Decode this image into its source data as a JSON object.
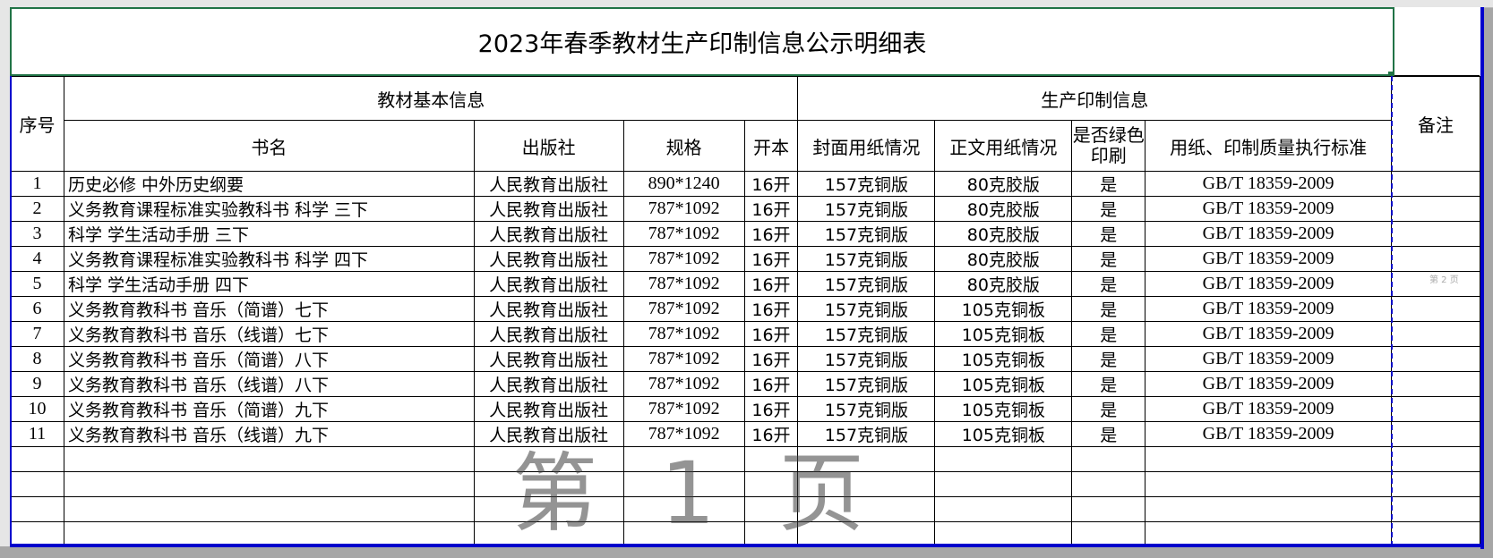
{
  "title": "2023年春季教材生产印制信息公示明细表",
  "header": {
    "seq": "序号",
    "group_basic": "教材基本信息",
    "group_print": "生产印制信息",
    "remarks": "备注",
    "book_name": "书名",
    "publisher": "出版社",
    "spec": "规格",
    "format": "开本",
    "cover_paper": "封面用纸情况",
    "body_paper": "正文用纸情况",
    "green_print": "是否绿色印刷",
    "standard": "用纸、印制质量执行标准"
  },
  "rows": [
    {
      "seq": "1",
      "name": "历史必修 中外历史纲要",
      "publisher": "人民教育出版社",
      "spec": "890*1240",
      "format": "16开",
      "cover": "157克铜版",
      "body": "80克胶版",
      "green": "是",
      "standard": "GB/T 18359-2009"
    },
    {
      "seq": "2",
      "name": "义务教育课程标准实验教科书 科学 三下",
      "publisher": "人民教育出版社",
      "spec": "787*1092",
      "format": "16开",
      "cover": "157克铜版",
      "body": "80克胶版",
      "green": "是",
      "standard": "GB/T 18359-2009"
    },
    {
      "seq": "3",
      "name": "科学 学生活动手册 三下",
      "publisher": "人民教育出版社",
      "spec": "787*1092",
      "format": "16开",
      "cover": "157克铜版",
      "body": "80克胶版",
      "green": "是",
      "standard": "GB/T 18359-2009"
    },
    {
      "seq": "4",
      "name": "义务教育课程标准实验教科书 科学 四下",
      "publisher": "人民教育出版社",
      "spec": "787*1092",
      "format": "16开",
      "cover": "157克铜版",
      "body": "80克胶版",
      "green": "是",
      "standard": "GB/T 18359-2009"
    },
    {
      "seq": "5",
      "name": "科学 学生活动手册 四下",
      "publisher": "人民教育出版社",
      "spec": "787*1092",
      "format": "16开",
      "cover": "157克铜版",
      "body": "80克胶版",
      "green": "是",
      "standard": "GB/T 18359-2009"
    },
    {
      "seq": "6",
      "name": "义务教育教科书 音乐（简谱）七下",
      "publisher": "人民教育出版社",
      "spec": "787*1092",
      "format": "16开",
      "cover": "157克铜版",
      "body": "105克铜板",
      "green": "是",
      "standard": "GB/T 18359-2009"
    },
    {
      "seq": "7",
      "name": "义务教育教科书 音乐（线谱）七下",
      "publisher": "人民教育出版社",
      "spec": "787*1092",
      "format": "16开",
      "cover": "157克铜版",
      "body": "105克铜板",
      "green": "是",
      "standard": "GB/T 18359-2009"
    },
    {
      "seq": "8",
      "name": "义务教育教科书 音乐（简谱）八下",
      "publisher": "人民教育出版社",
      "spec": "787*1092",
      "format": "16开",
      "cover": "157克铜版",
      "body": "105克铜板",
      "green": "是",
      "standard": "GB/T 18359-2009"
    },
    {
      "seq": "9",
      "name": "义务教育教科书 音乐（线谱）八下",
      "publisher": "人民教育出版社",
      "spec": "787*1092",
      "format": "16开",
      "cover": "157克铜版",
      "body": "105克铜板",
      "green": "是",
      "standard": "GB/T 18359-2009"
    },
    {
      "seq": "10",
      "name": "义务教育教科书 音乐（简谱）九下",
      "publisher": "人民教育出版社",
      "spec": "787*1092",
      "format": "16开",
      "cover": "157克铜版",
      "body": "105克铜板",
      "green": "是",
      "standard": "GB/T 18359-2009"
    },
    {
      "seq": "11",
      "name": "义务教育教科书 音乐（线谱）九下",
      "publisher": "人民教育出版社",
      "spec": "787*1092",
      "format": "16开",
      "cover": "157克铜版",
      "body": "105克铜板",
      "green": "是",
      "standard": "GB/T 18359-2009"
    }
  ],
  "watermark": "第 1 页",
  "watermark_next": "第 2 页",
  "colors": {
    "selection": "#217346",
    "page_break": "#0000cc"
  }
}
